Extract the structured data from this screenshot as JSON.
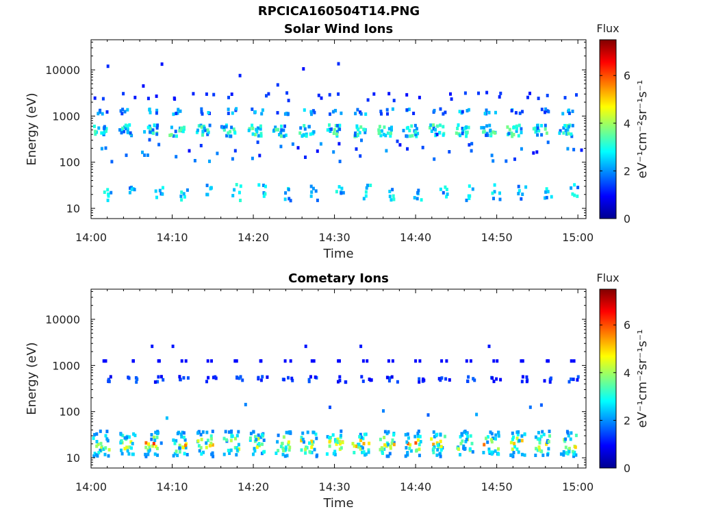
{
  "page": {
    "title": "RPCICA160504T14.PNG"
  },
  "chart_data": [
    {
      "type": "heatmap",
      "title": "Solar Wind Ions",
      "xlabel": "Time",
      "ylabel": "Energy (eV)",
      "x_ticks": [
        "14:00",
        "14:10",
        "14:20",
        "14:30",
        "14:40",
        "14:50",
        "15:00"
      ],
      "x_range_minutes": [
        0,
        61
      ],
      "y_scale": "log",
      "y_ticks": [
        "10",
        "100",
        "1000",
        "10000"
      ],
      "y_range": [
        6,
        45000
      ],
      "colorbar": {
        "label": "Flux",
        "units": "eV⁻¹cm⁻²sr⁻¹s⁻¹",
        "ticks": [
          "0",
          "2",
          "4",
          "6"
        ],
        "range": [
          0,
          7.5
        ],
        "colormap": "jet"
      },
      "features": [
        {
          "band_energy_eV": 480,
          "peak_flux": 3.6,
          "description": "main solar wind band, repeats every ~3.2 min"
        },
        {
          "band_energy_eV": 1250,
          "peak_flux": 2.6
        },
        {
          "band_energy_eV": 22,
          "peak_flux": 2.9
        },
        {
          "band_energy_eV": 2700,
          "peak_flux": 1.2
        }
      ]
    },
    {
      "type": "heatmap",
      "title": "Cometary Ions",
      "xlabel": "Time",
      "ylabel": "Energy (eV)",
      "x_ticks": [
        "14:00",
        "14:10",
        "14:20",
        "14:30",
        "14:40",
        "14:50",
        "15:00"
      ],
      "x_range_minutes": [
        0,
        61
      ],
      "y_scale": "log",
      "y_ticks": [
        "10",
        "100",
        "1000",
        "10000"
      ],
      "y_range": [
        6,
        45000
      ],
      "colorbar": {
        "label": "Flux",
        "units": "eV⁻¹cm⁻²sr⁻¹s⁻¹",
        "ticks": [
          "0",
          "2",
          "4",
          "6"
        ],
        "range": [
          0,
          7.5
        ],
        "colormap": "jet"
      },
      "features": [
        {
          "band_energy_eV": 20,
          "peak_flux": 6.4,
          "description": "dense cometary ion clusters, repeats every ~3.2 min"
        },
        {
          "band_energy_eV": 500,
          "peak_flux": 1.5
        },
        {
          "band_energy_eV": 1250,
          "peak_flux": 1.0
        },
        {
          "band_energy_eV": 2600,
          "peak_flux": 1.1
        }
      ]
    }
  ]
}
